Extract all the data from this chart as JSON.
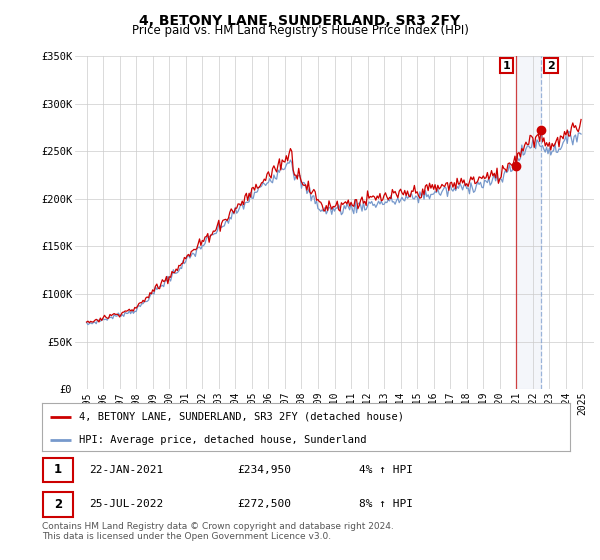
{
  "title": "4, BETONY LANE, SUNDERLAND, SR3 2FY",
  "subtitle": "Price paid vs. HM Land Registry's House Price Index (HPI)",
  "ylim": [
    0,
    350000
  ],
  "yticks": [
    0,
    50000,
    100000,
    150000,
    200000,
    250000,
    300000,
    350000
  ],
  "ytick_labels": [
    "£0",
    "£50K",
    "£100K",
    "£150K",
    "£200K",
    "£250K",
    "£300K",
    "£350K"
  ],
  "hpi_color": "#7799cc",
  "price_color": "#cc0000",
  "sale1_date": "22-JAN-2021",
  "sale1_price": 234950,
  "sale1_hpi_pct": "4%",
  "sale2_date": "25-JUL-2022",
  "sale2_price": 272500,
  "sale2_hpi_pct": "8%",
  "legend_property": "4, BETONY LANE, SUNDERLAND, SR3 2FY (detached house)",
  "legend_hpi": "HPI: Average price, detached house, Sunderland",
  "footer": "Contains HM Land Registry data © Crown copyright and database right 2024.\nThis data is licensed under the Open Government Licence v3.0.",
  "background_color": "#ffffff",
  "grid_color": "#cccccc"
}
